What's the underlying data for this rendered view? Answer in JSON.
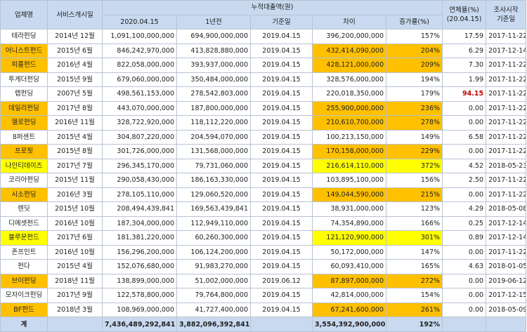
{
  "headers": {
    "company": "업체명",
    "service_start": "서비스개시일",
    "cumulative": "누적대출액(원)",
    "date_2020": "2020.04.15",
    "one_year_ago": "1년전",
    "base_date": "기준일",
    "difference": "차이",
    "growth_rate": "증가률(%)",
    "overdue_rate": "연체율(%)",
    "overdue_date": "(20.04.15)",
    "survey_start": "조사시작",
    "survey_base": "기준일"
  },
  "colors": {
    "header_bg": "#c9daf0",
    "orange_highlight": "#ffc000",
    "yellow_highlight": "#ffff00",
    "overdue_red": "#c00000"
  },
  "rows": [
    {
      "name": "테라펀딩",
      "start": "2014년 12월",
      "amt2020": "1,091,100,000,000",
      "amt1y": "694,900,000,000",
      "base": "2019.04.15",
      "diff": "396,200,000,000",
      "growth": "157%",
      "overdue": "17.59",
      "survey": "2017-11-22",
      "hl": ""
    },
    {
      "name": "어니스트펀드",
      "start": "2015년 6월",
      "amt2020": "846,242,970,000",
      "amt1y": "413,828,880,000",
      "base": "2019.04.15",
      "diff": "432,414,090,000",
      "growth": "204%",
      "overdue": "6.29",
      "survey": "2017-12-14",
      "hl": "orange"
    },
    {
      "name": "피플펀드",
      "start": "2016년 4월",
      "amt2020": "822,058,000,000",
      "amt1y": "393,937,000,000",
      "base": "2019.04.15",
      "diff": "428,121,000,000",
      "growth": "209%",
      "overdue": "7.30",
      "survey": "2017-11-22",
      "hl": "orange"
    },
    {
      "name": "투게더펀딩",
      "start": "2015년 9월",
      "amt2020": "679,060,000,000",
      "amt1y": "350,484,000,000",
      "base": "2019.04.15",
      "diff": "328,576,000,000",
      "growth": "194%",
      "overdue": "1.99",
      "survey": "2017-11-22",
      "hl": ""
    },
    {
      "name": "랩펀딩",
      "start": "2007년 5월",
      "amt2020": "498,561,153,000",
      "amt1y": "278,542,803,000",
      "base": "2019.04.15",
      "diff": "220,018,350,000",
      "growth": "179%",
      "overdue": "94.15",
      "survey": "2017-11-22",
      "hl": "",
      "overdue_high": true
    },
    {
      "name": "데일리펀딩",
      "start": "2017년 8월",
      "amt2020": "443,070,000,000",
      "amt1y": "187,800,000,000",
      "base": "2019.04.15",
      "diff": "255,900,000,000",
      "growth": "236%",
      "overdue": "0.00",
      "survey": "2017-11-22",
      "hl": "orange"
    },
    {
      "name": "헬로펀딩",
      "start": "2016년 11월",
      "amt2020": "328,722,920,000",
      "amt1y": "118,112,220,000",
      "base": "2019.04.15",
      "diff": "210,610,700,000",
      "growth": "278%",
      "overdue": "0.00",
      "survey": "2017-11-22",
      "hl": "orange"
    },
    {
      "name": "8퍼센트",
      "start": "2015년 4월",
      "amt2020": "304,807,220,000",
      "amt1y": "204,594,070,000",
      "base": "2019.04.15",
      "diff": "100,213,150,000",
      "growth": "149%",
      "overdue": "6.58",
      "survey": "2017-11-22",
      "hl": ""
    },
    {
      "name": "프로핏",
      "start": "2015년 8월",
      "amt2020": "301,726,000,000",
      "amt1y": "131,568,000,000",
      "base": "2019.04.15",
      "diff": "170,158,000,000",
      "growth": "229%",
      "overdue": "0.00",
      "survey": "2017-11-22",
      "hl": "orange"
    },
    {
      "name": "나인티데이즈",
      "start": "2017년 7월",
      "amt2020": "296,345,170,000",
      "amt1y": "79,731,060,000",
      "base": "2019.04.15",
      "diff": "216,614,110,000",
      "growth": "372%",
      "overdue": "4.52",
      "survey": "2018-05-23",
      "hl": "yellow"
    },
    {
      "name": "코리아펀딩",
      "start": "2015년 11월",
      "amt2020": "290,058,430,000",
      "amt1y": "186,163,330,000",
      "base": "2019.04.15",
      "diff": "103,895,100,000",
      "growth": "156%",
      "overdue": "2.50",
      "survey": "2017-11-22",
      "hl": ""
    },
    {
      "name": "시소펀딩",
      "start": "2016년 3월",
      "amt2020": "278,105,110,000",
      "amt1y": "129,060,520,000",
      "base": "2019.04.15",
      "diff": "149,044,590,000",
      "growth": "215%",
      "overdue": "0.00",
      "survey": "2017-11-22",
      "hl": "orange"
    },
    {
      "name": "렌딧",
      "start": "2015년 10월",
      "amt2020": "208,494,439,841",
      "amt1y": "169,563,439,841",
      "base": "2019.04.15",
      "diff": "38,931,000,000",
      "growth": "123%",
      "overdue": "4.29",
      "survey": "2018-05-08",
      "hl": ""
    },
    {
      "name": "디에셋펀드",
      "start": "2016년 10월",
      "amt2020": "187,304,000,000",
      "amt1y": "112,949,110,000",
      "base": "2019.04.15",
      "diff": "74,354,890,000",
      "growth": "166%",
      "overdue": "0.25",
      "survey": "2017-12-14",
      "hl": ""
    },
    {
      "name": "블루문펀드",
      "start": "2017년 6월",
      "amt2020": "181,381,220,000",
      "amt1y": "60,260,300,000",
      "base": "2019.04.15",
      "diff": "121,120,900,000",
      "growth": "301%",
      "overdue": "0.89",
      "survey": "2017-12-14",
      "hl": "yellow"
    },
    {
      "name": "존프인트",
      "start": "2016년 10월",
      "amt2020": "156,296,200,000",
      "amt1y": "106,124,200,000",
      "base": "2019.04.15",
      "diff": "50,172,000,000",
      "growth": "147%",
      "overdue": "0.00",
      "survey": "2017-11-22",
      "hl": ""
    },
    {
      "name": "펀다",
      "start": "2015년 4월",
      "amt2020": "152,076,680,000",
      "amt1y": "91,983,270,000",
      "base": "2019.04.15",
      "diff": "60,093,410,000",
      "growth": "165%",
      "overdue": "4.63",
      "survey": "2018-01-05",
      "hl": ""
    },
    {
      "name": "브이펀딩",
      "start": "2018년 11월",
      "amt2020": "138,899,000,000",
      "amt1y": "51,002,000,000",
      "base": "2019.06.12",
      "diff": "87,897,000,000",
      "growth": "272%",
      "overdue": "0.00",
      "survey": "2019-06-12",
      "hl": "orange"
    },
    {
      "name": "모자이크펀딩",
      "start": "2017년 9월",
      "amt2020": "122,578,800,000",
      "amt1y": "79,764,800,000",
      "base": "2019.04.15",
      "diff": "42,814,000,000",
      "growth": "154%",
      "overdue": "0.00",
      "survey": "2017-12-15",
      "hl": ""
    },
    {
      "name": "BF펀드",
      "start": "2018년 3월",
      "amt2020": "108,969,000,000",
      "amt1y": "41,727,400,000",
      "base": "2019.04.15",
      "diff": "67,241,600,000",
      "growth": "261%",
      "overdue": "0.00",
      "survey": "2018-05-09",
      "hl": "orange"
    }
  ],
  "total": {
    "label": "계",
    "amt2020": "7,436,489,292,841",
    "amt1y": "3,882,096,392,841",
    "diff": "3,554,392,900,000",
    "growth": "192%"
  }
}
